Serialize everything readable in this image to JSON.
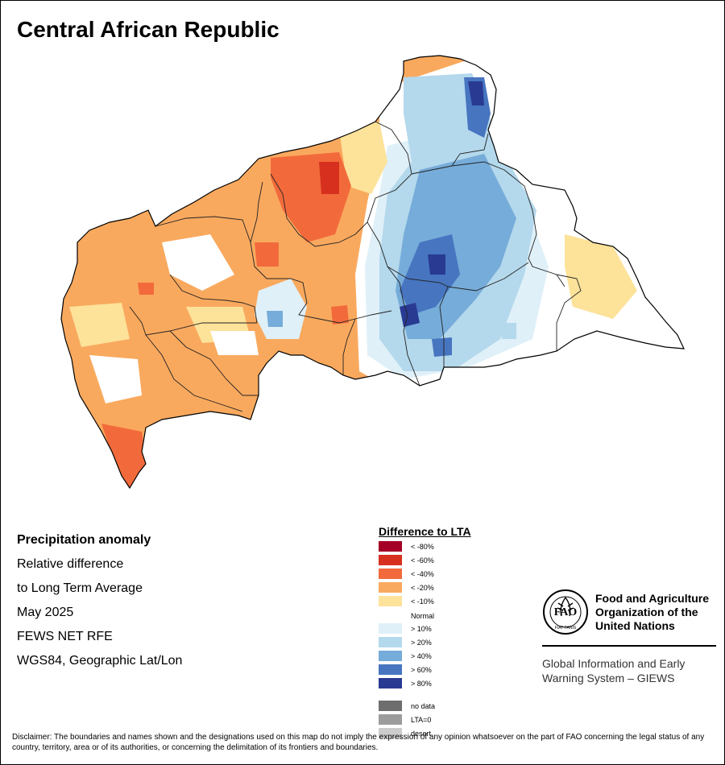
{
  "title": "Central African Republic",
  "info": {
    "heading": "Precipitation anomaly",
    "line1": "Relative difference",
    "line2": "to Long Term Average",
    "period": "May 2025",
    "source": "FEWS NET RFE",
    "projection": "WGS84, Geographic Lat/Lon"
  },
  "legend": {
    "title": "Difference to LTA",
    "items": [
      {
        "label": "< -80%",
        "color": "#a50026"
      },
      {
        "label": "< -60%",
        "color": "#d7301f"
      },
      {
        "label": "< -40%",
        "color": "#f26a3b"
      },
      {
        "label": "< -20%",
        "color": "#f9a95e"
      },
      {
        "label": "< -10%",
        "color": "#fde29a"
      },
      {
        "label": "Normal",
        "color": "#ffffff"
      },
      {
        "label": "> 10%",
        "color": "#dff0f8"
      },
      {
        "label": "> 20%",
        "color": "#b4d8ec"
      },
      {
        "label": "> 40%",
        "color": "#76acd9"
      },
      {
        "label": "> 60%",
        "color": "#4775c0"
      },
      {
        "label": "> 80%",
        "color": "#293a93"
      },
      {
        "label": "no data",
        "color": "#6e6e6e"
      },
      {
        "label": "LTA=0",
        "color": "#9c9c9c"
      },
      {
        "label": "desert",
        "color": "#cccccc"
      }
    ]
  },
  "fao": {
    "name_line1": "Food and Agriculture",
    "name_line2": "Organization of the",
    "name_line3": "United Nations",
    "logo_text": "FAO",
    "motto": "FIAT PANIS",
    "giews_line1": "Global Information and Early",
    "giews_line2": "Warning System – GIEWS"
  },
  "disclaimer": "Disclaimer: The boundaries and names shown and the designations used on this map do not imply the expression of any opinion whatsoever on the part of FAO concerning the legal status of any country, territory, area or of its authorities, or concerning the delimitation of its frontiers and boundaries."
}
